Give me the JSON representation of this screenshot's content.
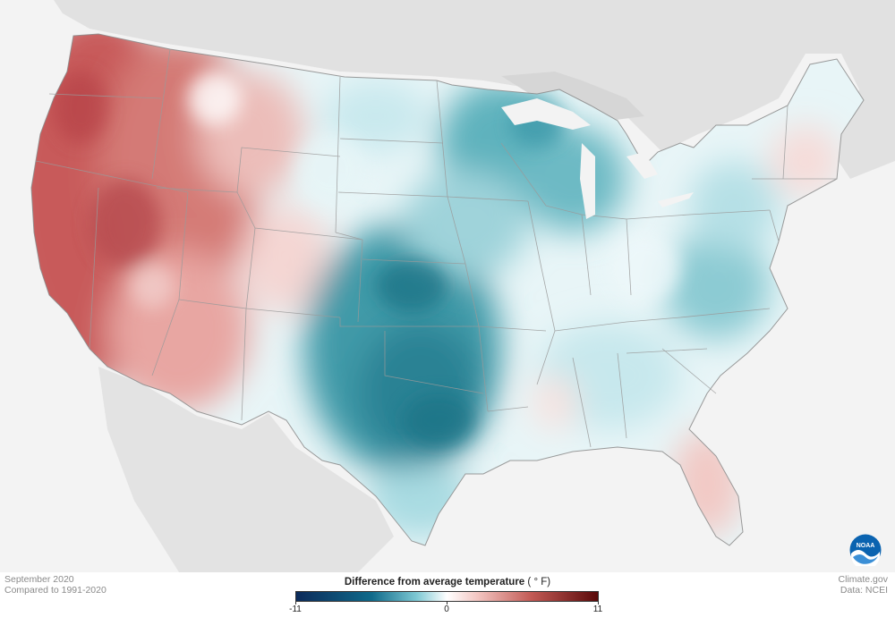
{
  "map": {
    "title": "Difference from average temperature",
    "unit": "( ° F)",
    "period": "September 2020",
    "baseline": "Compared to 1991-2020",
    "credit_site": "Climate.gov",
    "credit_data": "Data: NCEI",
    "legend": {
      "min_label": "-11",
      "mid_label": "0",
      "max_label": "11",
      "range": [
        -11,
        11
      ],
      "colors": [
        "#0b2a5a",
        "#0f6a8a",
        "#7fc9d4",
        "#ffffff",
        "#f3c6c2",
        "#c25a55",
        "#5a0a0a"
      ]
    },
    "logo_text": "NOAA"
  }
}
